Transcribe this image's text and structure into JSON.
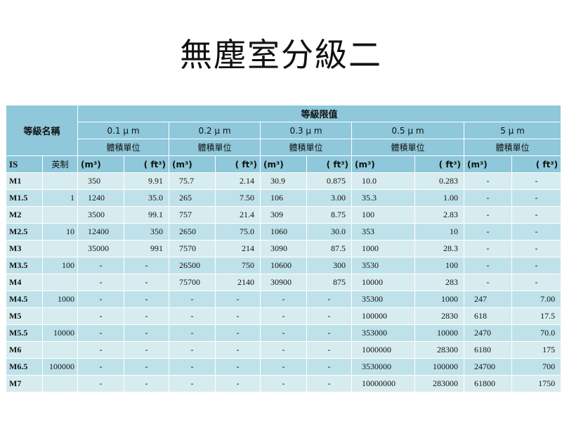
{
  "title": "無塵室分級二",
  "table": {
    "header_grade_name": "等級名稱",
    "header_limit": "等級限值",
    "header_is": "IS",
    "header_imperial": "英制",
    "unit_label": "體積單位",
    "unit_m3": "(m³)",
    "unit_ft3": "( ft³)",
    "sizes": [
      "0.1 μ m",
      "0.2 μ m",
      "0.3 μ m",
      "0.5 μ m",
      "5 μ m"
    ],
    "rows": [
      {
        "is": "M1",
        "en": "",
        "v": [
          "350",
          "9.91",
          "75.7",
          "2.14",
          "30.9",
          "0.875",
          "10.0",
          "0.283",
          "-",
          "-"
        ]
      },
      {
        "is": "M1.5",
        "en": "1",
        "v": [
          "1240",
          "35.0",
          "265",
          "7.50",
          "106",
          "3.00",
          "35.3",
          "1.00",
          "-",
          "-"
        ]
      },
      {
        "is": "M2",
        "en": "",
        "v": [
          "3500",
          "99.1",
          "757",
          "21.4",
          "309",
          "8.75",
          "100",
          "2.83",
          "-",
          "-"
        ]
      },
      {
        "is": "M2.5",
        "en": "10",
        "v": [
          "12400",
          "350",
          "2650",
          "75.0",
          "1060",
          "30.0",
          "353",
          "10",
          "-",
          "-"
        ]
      },
      {
        "is": "M3",
        "en": "",
        "v": [
          "35000",
          "991",
          "7570",
          "214",
          "3090",
          "87.5",
          "1000",
          "28.3",
          "-",
          "-"
        ]
      },
      {
        "is": "M3.5",
        "en": "100",
        "v": [
          "-",
          "-",
          "26500",
          "750",
          "10600",
          "300",
          "3530",
          "100",
          "-",
          "-"
        ]
      },
      {
        "is": "M4",
        "en": "",
        "v": [
          "-",
          "-",
          "75700",
          "2140",
          "30900",
          "875",
          "10000",
          "283",
          "-",
          "-"
        ]
      },
      {
        "is": "M4.5",
        "en": "1000",
        "v": [
          "-",
          "-",
          "-",
          "-",
          "-",
          "-",
          "35300",
          "1000",
          "247",
          "7.00"
        ]
      },
      {
        "is": "M5",
        "en": "",
        "v": [
          "-",
          "-",
          "-",
          "-",
          "-",
          "-",
          "100000",
          "2830",
          "618",
          "17.5"
        ]
      },
      {
        "is": "M5.5",
        "en": "10000",
        "v": [
          "-",
          "-",
          "-",
          "-",
          "-",
          "-",
          "353000",
          "10000",
          "2470",
          "70.0"
        ]
      },
      {
        "is": "M6",
        "en": "",
        "v": [
          "-",
          "-",
          "-",
          "-",
          "-",
          "-",
          "1000000",
          "28300",
          "6180",
          "175"
        ]
      },
      {
        "is": "M6.5",
        "en": "100000",
        "v": [
          "-",
          "-",
          "-",
          "-",
          "-",
          "-",
          "3530000",
          "100000",
          "24700",
          "700"
        ]
      },
      {
        "is": "M7",
        "en": "",
        "v": [
          "-",
          "-",
          "-",
          "-",
          "-",
          "-",
          "10000000",
          "283000",
          "61800",
          "1750"
        ]
      }
    ]
  }
}
